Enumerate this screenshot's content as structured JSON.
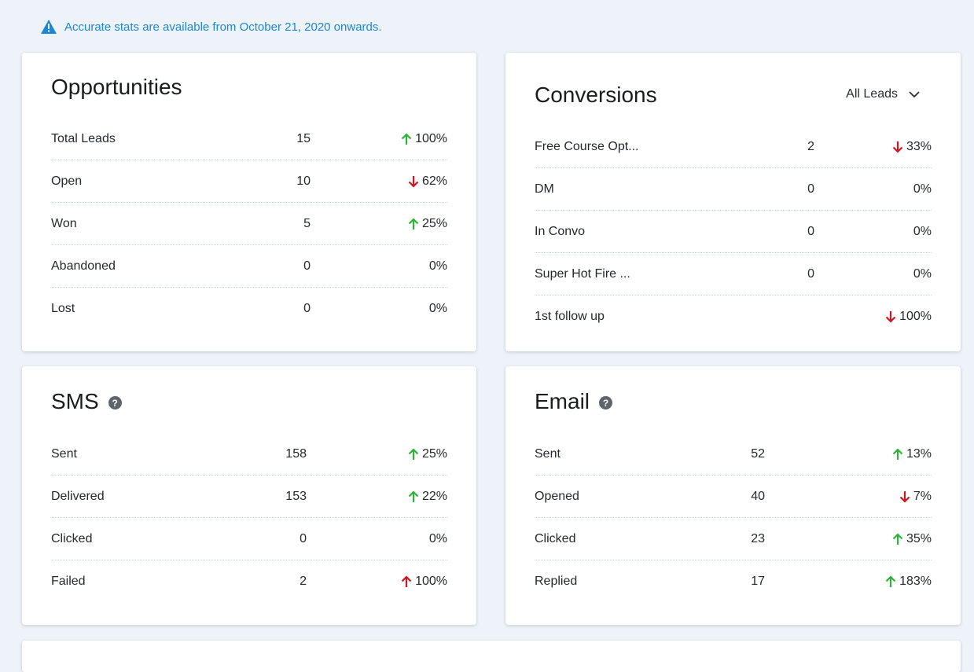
{
  "notice": {
    "icon": "warning-triangle-icon",
    "text": "Accurate stats are available from October 21, 2020 onwards.",
    "color": "#1b88d6"
  },
  "colors": {
    "up": "#2db33a",
    "down": "#d0161f"
  },
  "opportunities": {
    "title": "Opportunities",
    "rows": [
      {
        "label": "Total Leads",
        "value": "15",
        "change": "100%",
        "trend": "up"
      },
      {
        "label": "Open",
        "value": "10",
        "change": "62%",
        "trend": "down"
      },
      {
        "label": "Won",
        "value": "5",
        "change": "25%",
        "trend": "up"
      },
      {
        "label": "Abandoned",
        "value": "0",
        "change": "0%",
        "trend": "none"
      },
      {
        "label": "Lost",
        "value": "0",
        "change": "0%",
        "trend": "none"
      }
    ]
  },
  "conversions": {
    "title": "Conversions",
    "filter_label": "All Leads",
    "rows": [
      {
        "label": "Free Course Opt...",
        "value": "2",
        "change": "33%",
        "trend": "down"
      },
      {
        "label": "DM",
        "value": "0",
        "change": "0%",
        "trend": "none"
      },
      {
        "label": "In Convo",
        "value": "0",
        "change": "0%",
        "trend": "none"
      },
      {
        "label": "Super Hot Fire ...",
        "value": "0",
        "change": "0%",
        "trend": "none"
      },
      {
        "label": "1st follow up",
        "value": "",
        "change": "100%",
        "trend": "down"
      }
    ]
  },
  "sms": {
    "title": "SMS",
    "rows": [
      {
        "label": "Sent",
        "value": "158",
        "change": "25%",
        "trend": "up"
      },
      {
        "label": "Delivered",
        "value": "153",
        "change": "22%",
        "trend": "up"
      },
      {
        "label": "Clicked",
        "value": "0",
        "change": "0%",
        "trend": "none"
      },
      {
        "label": "Failed",
        "value": "2",
        "change": "100%",
        "trend": "up-bad"
      }
    ]
  },
  "email": {
    "title": "Email",
    "rows": [
      {
        "label": "Sent",
        "value": "52",
        "change": "13%",
        "trend": "up"
      },
      {
        "label": "Opened",
        "value": "40",
        "change": "7%",
        "trend": "down"
      },
      {
        "label": "Clicked",
        "value": "23",
        "change": "35%",
        "trend": "up"
      },
      {
        "label": "Replied",
        "value": "17",
        "change": "183%",
        "trend": "up"
      }
    ]
  }
}
